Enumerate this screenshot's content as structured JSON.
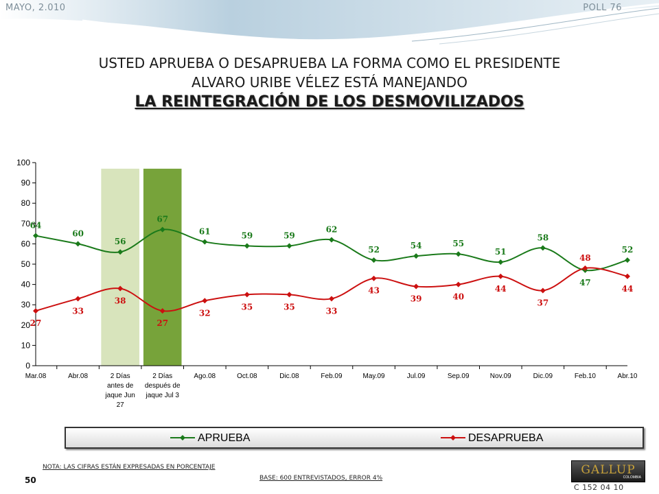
{
  "header": {
    "date": "MAYO, 2.010",
    "poll": "POLL 76",
    "title_line1": "USTED APRUEBA O DESAPRUEBA LA FORMA COMO EL PRESIDENTE",
    "title_line2": "ALVARO URIBE VÉLEZ ESTÁ MANEJANDO",
    "title_line3": "LA REINTEGRACIÓN DE LOS DESMOVILIZADOS"
  },
  "chart_data": {
    "type": "line",
    "categories": [
      [
        "Mar.08"
      ],
      [
        "Abr.08"
      ],
      [
        "2 Días",
        "antes de",
        "jaque Jun",
        "27"
      ],
      [
        "2 Días",
        "después de",
        "jaque Jul 3"
      ],
      [
        "Ago.08"
      ],
      [
        "Oct.08"
      ],
      [
        "Dic.08"
      ],
      [
        "Feb.09"
      ],
      [
        "May.09"
      ],
      [
        "Jul.09"
      ],
      [
        "Sep.09"
      ],
      [
        "Nov.09"
      ],
      [
        "Dic.09"
      ],
      [
        "Feb.10"
      ],
      [
        "Abr.10"
      ]
    ],
    "series": [
      {
        "name": "APRUEBA",
        "color": "#1a7a1a",
        "values": [
          64,
          60,
          56,
          67,
          61,
          59,
          59,
          62,
          52,
          54,
          55,
          51,
          58,
          47,
          52
        ],
        "label_pos": [
          "above",
          "above",
          "above",
          "above",
          "above",
          "above",
          "above",
          "above",
          "above",
          "above",
          "above",
          "above",
          "above",
          "below",
          "above"
        ]
      },
      {
        "name": "DESAPRUEBA",
        "color": "#cc1010",
        "values": [
          27,
          33,
          38,
          27,
          32,
          35,
          35,
          33,
          43,
          39,
          40,
          44,
          37,
          48,
          44
        ],
        "label_pos": [
          "below",
          "below",
          "below",
          "below",
          "below",
          "below",
          "below",
          "below",
          "below",
          "below",
          "below",
          "below",
          "below",
          "above",
          "below"
        ]
      }
    ],
    "highlight_bands": [
      {
        "category_index": 2,
        "color": "#d8e4bc"
      },
      {
        "category_index": 3,
        "color": "#77a33a"
      }
    ],
    "ylim": [
      0,
      100
    ],
    "yticks": [
      0,
      10,
      20,
      30,
      40,
      50,
      60,
      70,
      80,
      90,
      100
    ],
    "grid": false,
    "legend_position": "bottom"
  },
  "footer": {
    "note": "NOTA: LAS CIFRAS ESTÁN EXPRESADAS EN PORCENTAJE",
    "base": "BASE: 600 ENTREVISTADOS, ERROR 4%",
    "page_number": "50",
    "logo": "GALLUP",
    "logo_sub": "COLOMBIA",
    "code": "C 152 04 10"
  }
}
